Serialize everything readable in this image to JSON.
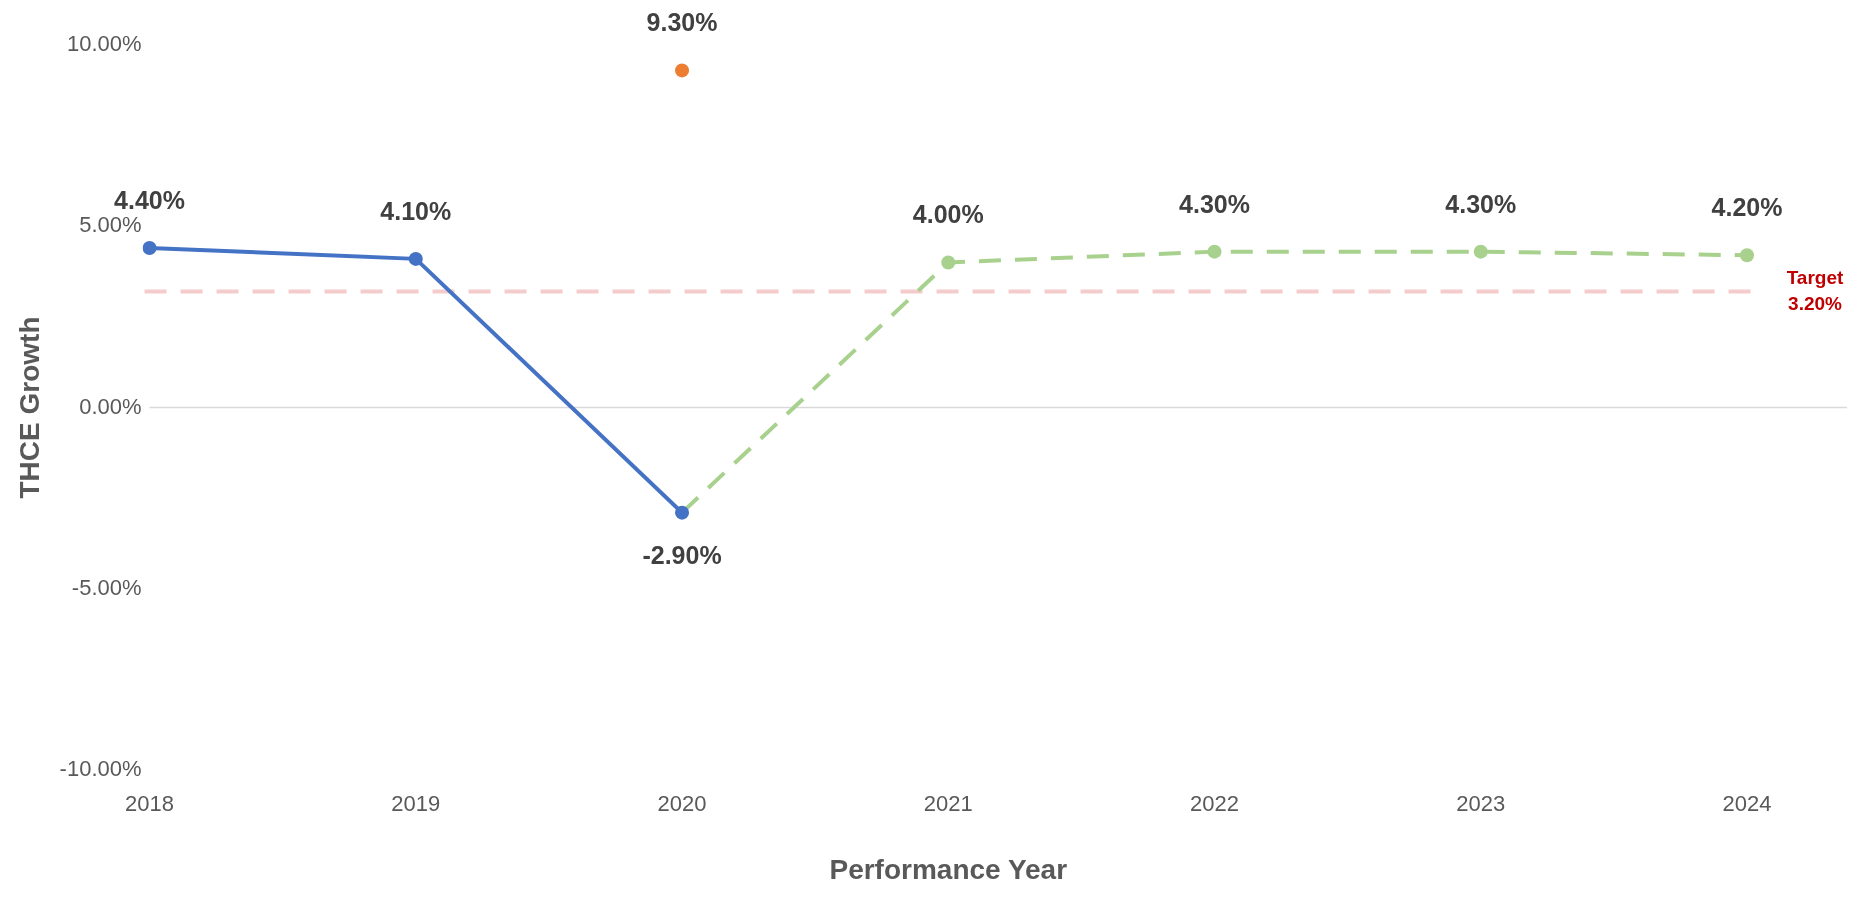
{
  "chart_data": {
    "type": "line",
    "xlabel": "Performance Year",
    "ylabel": "THCE Growth",
    "categories": [
      "2018",
      "2019",
      "2020",
      "2021",
      "2022",
      "2023",
      "2024"
    ],
    "series": [
      {
        "type": "line",
        "color": "#4472c4",
        "line_style": "solid",
        "marker": "circle",
        "values": [
          4.4,
          4.1,
          -2.9,
          null,
          null,
          null,
          null
        ],
        "value_labels": [
          "4.40%",
          "4.10%",
          "-2.90%",
          null,
          null,
          null,
          null
        ]
      },
      {
        "type": "scatter",
        "color": "#ed7d31",
        "marker": "circle",
        "values": [
          null,
          null,
          9.3,
          null,
          null,
          null,
          null
        ],
        "value_labels": [
          null,
          null,
          "9.30%",
          null,
          null,
          null,
          null
        ]
      },
      {
        "type": "line",
        "color": "#a9d18e",
        "line_style": "dashed",
        "marker": "circle",
        "values": [
          null,
          null,
          -2.9,
          4.0,
          4.3,
          4.3,
          4.2
        ],
        "value_labels": [
          null,
          null,
          null,
          "4.00%",
          "4.30%",
          "4.30%",
          "4.20%"
        ]
      }
    ],
    "ylim": [
      -10,
      10
    ],
    "yticks": [
      {
        "value": -10,
        "label": "-10.00%"
      },
      {
        "value": -5,
        "label": "-5.00%"
      },
      {
        "value": 0,
        "label": "0.00%"
      },
      {
        "value": 5,
        "label": "5.00%"
      },
      {
        "value": 10,
        "label": "10.00%"
      }
    ],
    "ref_lines": [
      {
        "axis": "y",
        "value": 0,
        "color": "#d9d9d9",
        "line_style": "solid"
      },
      {
        "axis": "y",
        "value": 3.2,
        "label": "Target\n3.20%",
        "color": "#f4cccc",
        "line_style": "dashed"
      }
    ],
    "grid": false,
    "legend": false
  }
}
